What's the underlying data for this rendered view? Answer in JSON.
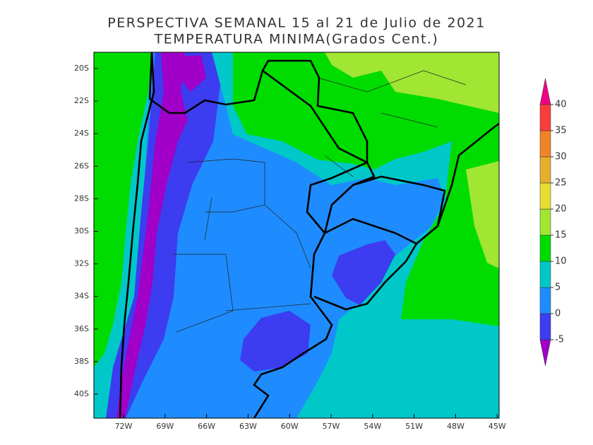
{
  "title": [
    "PERSPECTIVA SEMANAL  15 al 21 de Julio de 2021",
    "TEMPERATURA MINIMA(Grados Cent.)"
  ],
  "map": {
    "lat_labels": [
      "20S",
      "22S",
      "24S",
      "26S",
      "28S",
      "30S",
      "32S",
      "34S",
      "36S",
      "38S",
      "40S"
    ],
    "lon_labels": [
      "72W",
      "69W",
      "66W",
      "63W",
      "60W",
      "57W",
      "54W",
      "51W",
      "48W",
      "45W"
    ]
  },
  "colorbar": {
    "ticks": [
      -5,
      0,
      5,
      10,
      15,
      20,
      25,
      30,
      35,
      40
    ],
    "colors": [
      "#a000c8",
      "#3c3cf0",
      "#1e8cff",
      "#00c8c8",
      "#00dc00",
      "#a0e632",
      "#e6dc32",
      "#e6af2d",
      "#f08228",
      "#fa3c3c",
      "#f00082"
    ]
  }
}
